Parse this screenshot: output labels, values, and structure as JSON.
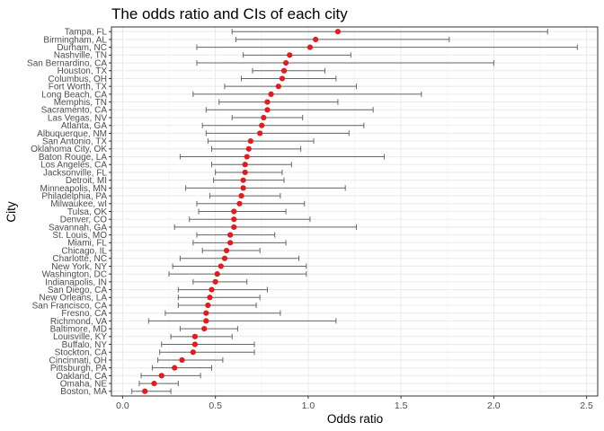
{
  "chart_data": {
    "type": "scatter",
    "title": "The odds ratio and CIs of each city",
    "xlabel": "Odds ratio",
    "ylabel": "City",
    "xlim": [
      -0.06,
      2.56
    ],
    "xticks": [
      0.0,
      0.5,
      1.0,
      1.5,
      2.0,
      2.5
    ],
    "xtick_labels": [
      "0.0",
      "0.5",
      "1.0",
      "1.5",
      "2.0",
      "2.5"
    ],
    "grid": true,
    "point_color": "#e41a1c",
    "errorbar_color": "#666666",
    "cities": [
      {
        "name": "Tampa, FL",
        "or": 1.16,
        "lo": 0.59,
        "hi": 2.29
      },
      {
        "name": "Birmingham, AL",
        "or": 1.04,
        "lo": 0.61,
        "hi": 1.76
      },
      {
        "name": "Durham, NC",
        "or": 1.01,
        "lo": 0.4,
        "hi": 2.45
      },
      {
        "name": "Nashville, TN",
        "or": 0.9,
        "lo": 0.65,
        "hi": 1.23
      },
      {
        "name": "San Bernardino, CA",
        "or": 0.88,
        "lo": 0.4,
        "hi": 2.0
      },
      {
        "name": "Houston, TX",
        "or": 0.87,
        "lo": 0.7,
        "hi": 1.09
      },
      {
        "name": "Columbus, OH",
        "or": 0.86,
        "lo": 0.64,
        "hi": 1.15
      },
      {
        "name": "Fort Worth, TX",
        "or": 0.84,
        "lo": 0.55,
        "hi": 1.26
      },
      {
        "name": "Long Beach, CA",
        "or": 0.8,
        "lo": 0.38,
        "hi": 1.61
      },
      {
        "name": "Memphis, TN",
        "or": 0.78,
        "lo": 0.52,
        "hi": 1.16
      },
      {
        "name": "Sacramento, CA",
        "or": 0.78,
        "lo": 0.45,
        "hi": 1.35
      },
      {
        "name": "Las Vegas, NV",
        "or": 0.76,
        "lo": 0.59,
        "hi": 0.97
      },
      {
        "name": "Atlanta, GA",
        "or": 0.75,
        "lo": 0.43,
        "hi": 1.3
      },
      {
        "name": "Albuquerque, NM",
        "or": 0.74,
        "lo": 0.45,
        "hi": 1.22
      },
      {
        "name": "San Antonio, TX",
        "or": 0.69,
        "lo": 0.46,
        "hi": 1.03
      },
      {
        "name": "Oklahoma City, OK",
        "or": 0.68,
        "lo": 0.48,
        "hi": 0.96
      },
      {
        "name": "Baton Rouge, LA",
        "or": 0.67,
        "lo": 0.31,
        "hi": 1.41
      },
      {
        "name": "Los Angeles, CA",
        "or": 0.66,
        "lo": 0.48,
        "hi": 0.91
      },
      {
        "name": "Jacksonville, FL",
        "or": 0.66,
        "lo": 0.5,
        "hi": 0.86
      },
      {
        "name": "Detroit, MI",
        "or": 0.65,
        "lo": 0.49,
        "hi": 0.87
      },
      {
        "name": "Minneapolis, MN",
        "or": 0.65,
        "lo": 0.34,
        "hi": 1.2
      },
      {
        "name": "Philadelphia, PA",
        "or": 0.64,
        "lo": 0.47,
        "hi": 0.85
      },
      {
        "name": "Milwaukee, wI",
        "or": 0.63,
        "lo": 0.4,
        "hi": 0.98
      },
      {
        "name": "Tulsa, OK",
        "or": 0.6,
        "lo": 0.41,
        "hi": 0.88
      },
      {
        "name": "Denver, CO",
        "or": 0.6,
        "lo": 0.36,
        "hi": 1.01
      },
      {
        "name": "Savannah, GA",
        "or": 0.6,
        "lo": 0.28,
        "hi": 1.26
      },
      {
        "name": "St. Louis, MO",
        "or": 0.58,
        "lo": 0.4,
        "hi": 0.82
      },
      {
        "name": "Miami, FL",
        "or": 0.58,
        "lo": 0.38,
        "hi": 0.88
      },
      {
        "name": "Chicago, IL",
        "or": 0.56,
        "lo": 0.43,
        "hi": 0.74
      },
      {
        "name": "Charlotte, NC",
        "or": 0.55,
        "lo": 0.31,
        "hi": 0.95
      },
      {
        "name": "New York, NY",
        "or": 0.53,
        "lo": 0.27,
        "hi": 0.99
      },
      {
        "name": "Washington, DC",
        "or": 0.51,
        "lo": 0.25,
        "hi": 0.99
      },
      {
        "name": "Indianapolis, IN",
        "or": 0.5,
        "lo": 0.38,
        "hi": 0.67
      },
      {
        "name": "San Diego, CA",
        "or": 0.48,
        "lo": 0.3,
        "hi": 0.78
      },
      {
        "name": "New Orleans, LA",
        "or": 0.47,
        "lo": 0.3,
        "hi": 0.74
      },
      {
        "name": "San Francisco, CA",
        "or": 0.46,
        "lo": 0.3,
        "hi": 0.72
      },
      {
        "name": "Fresno, CA",
        "or": 0.45,
        "lo": 0.23,
        "hi": 0.85
      },
      {
        "name": "Richmond, VA",
        "or": 0.45,
        "lo": 0.14,
        "hi": 1.15
      },
      {
        "name": "Baltimore, MD",
        "or": 0.44,
        "lo": 0.31,
        "hi": 0.62
      },
      {
        "name": "Louisville, KY",
        "or": 0.39,
        "lo": 0.26,
        "hi": 0.59
      },
      {
        "name": "Buffalo, NY",
        "or": 0.39,
        "lo": 0.21,
        "hi": 0.71
      },
      {
        "name": "Stockton, CA",
        "or": 0.38,
        "lo": 0.2,
        "hi": 0.71
      },
      {
        "name": "Cincinnati, OH",
        "or": 0.32,
        "lo": 0.19,
        "hi": 0.54
      },
      {
        "name": "Pittsburgh, PA",
        "or": 0.28,
        "lo": 0.16,
        "hi": 0.48
      },
      {
        "name": "Oakland, CA",
        "or": 0.21,
        "lo": 0.1,
        "hi": 0.42
      },
      {
        "name": "Omaha, NE",
        "or": 0.17,
        "lo": 0.09,
        "hi": 0.3
      },
      {
        "name": "Boston, MA",
        "or": 0.12,
        "lo": 0.05,
        "hi": 0.26
      }
    ]
  }
}
